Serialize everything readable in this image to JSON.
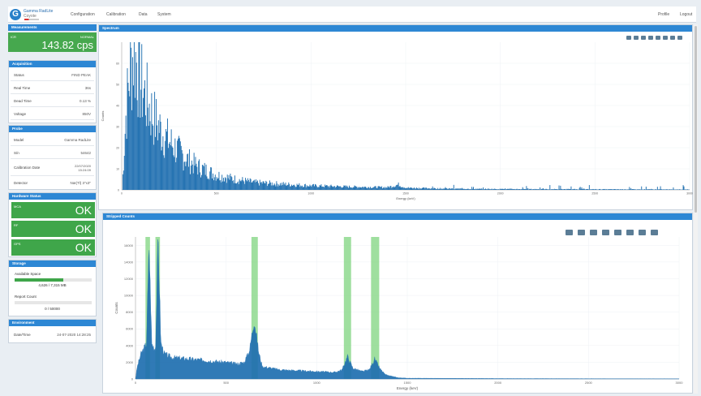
{
  "app": {
    "brand_line1": "Gamma RadLite",
    "brand_line2": "Coyote"
  },
  "nav": [
    "Configuration",
    "Calibration",
    "Data",
    "System"
  ],
  "nav_right": [
    "Profile",
    "Logout"
  ],
  "measurements": {
    "title": "Measurements",
    "label": "ICR",
    "status": "NORMAL",
    "value": "143.82 cps",
    "color": "#46a84e"
  },
  "acquisition": {
    "title": "Acquisition",
    "rows": [
      {
        "label": "Status",
        "value": "FIND PEAK"
      },
      {
        "label": "Real Time",
        "value": "36s"
      },
      {
        "label": "Dead Time",
        "value": "0.13 %"
      },
      {
        "label": "Voltage",
        "value": "850V"
      }
    ]
  },
  "probe": {
    "title": "Probe",
    "rows": [
      {
        "label": "Model",
        "value": "Gamma RadLite"
      },
      {
        "label": "S/n",
        "value": "54642"
      },
      {
        "label": "Calibration Date",
        "value": "22/07/2020\n15:24:09"
      },
      {
        "label": "Detector",
        "value": "NaI(Tl) 3\"x3\""
      }
    ]
  },
  "hardware": {
    "title": "Hardware Status",
    "items": [
      {
        "label": "MCA",
        "value": "OK"
      },
      {
        "label": "RF",
        "value": "OK"
      },
      {
        "label": "GPS",
        "value": "OK"
      }
    ]
  },
  "storage": {
    "title": "Storage",
    "space_label": "Available Space",
    "space_value": "4,626 / 7,315 MB",
    "space_fraction": 0.63,
    "report_label": "Report Count",
    "report_value": "0 / 50000",
    "report_fraction": 0.0
  },
  "environment": {
    "title": "Environment",
    "label": "Date/Time",
    "value": "24-07-2020 14:28:25"
  },
  "spectrum_title": "Spectrum",
  "stripping_title": "Stripped Counts",
  "chart_data": [
    {
      "type": "bar",
      "title": "",
      "xlabel": "Energy (keV)",
      "ylabel": "Counts",
      "xlim": [
        0,
        3000
      ],
      "ylim": [
        0,
        70
      ],
      "xticks": [
        0,
        500,
        1000,
        1500,
        2000,
        2500,
        3000
      ],
      "yticks": [
        0,
        10,
        20,
        30,
        40,
        50,
        60
      ],
      "color": "#1f6fb0",
      "envelope": [
        [
          0,
          0
        ],
        [
          20,
          35
        ],
        [
          40,
          55
        ],
        [
          60,
          65
        ],
        [
          80,
          60
        ],
        [
          100,
          50
        ],
        [
          140,
          40
        ],
        [
          180,
          32
        ],
        [
          220,
          26
        ],
        [
          260,
          22
        ],
        [
          300,
          18
        ],
        [
          350,
          14
        ],
        [
          400,
          11
        ],
        [
          450,
          9
        ],
        [
          500,
          7
        ],
        [
          600,
          5
        ],
        [
          700,
          3.5
        ],
        [
          800,
          3
        ],
        [
          900,
          2.5
        ],
        [
          1000,
          2
        ],
        [
          1200,
          1.5
        ],
        [
          1400,
          1.2
        ],
        [
          1460,
          2.5
        ],
        [
          1500,
          1
        ],
        [
          1700,
          0.6
        ],
        [
          2000,
          0.4
        ],
        [
          2500,
          0.3
        ],
        [
          3000,
          0.2
        ]
      ]
    },
    {
      "type": "area",
      "title": "",
      "xlabel": "Energy (keV)",
      "ylabel": "Counts",
      "xlim": [
        0,
        3000
      ],
      "ylim": [
        0,
        17000
      ],
      "xticks": [
        0,
        500,
        1000,
        1500,
        2000,
        2500,
        3000
      ],
      "yticks": [
        0,
        2000,
        4000,
        6000,
        8000,
        10000,
        12000,
        14000,
        16000
      ],
      "color": "#1f6fb0",
      "highlight_color": "#7fd47f",
      "highlights": [
        [
          55,
          80
        ],
        [
          110,
          135
        ],
        [
          640,
          675
        ],
        [
          1150,
          1190
        ],
        [
          1300,
          1345
        ]
      ],
      "points": [
        [
          0,
          0
        ],
        [
          10,
          1500
        ],
        [
          30,
          3000
        ],
        [
          60,
          4200
        ],
        [
          75,
          16000
        ],
        [
          90,
          4200
        ],
        [
          110,
          3500
        ],
        [
          125,
          17000
        ],
        [
          140,
          4300
        ],
        [
          160,
          3000
        ],
        [
          200,
          2600
        ],
        [
          300,
          2400
        ],
        [
          400,
          2200
        ],
        [
          500,
          2000
        ],
        [
          560,
          1800
        ],
        [
          600,
          2000
        ],
        [
          630,
          3500
        ],
        [
          655,
          7200
        ],
        [
          680,
          3200
        ],
        [
          700,
          1500
        ],
        [
          800,
          1100
        ],
        [
          900,
          1000
        ],
        [
          1000,
          900
        ],
        [
          1100,
          800
        ],
        [
          1140,
          1100
        ],
        [
          1170,
          2700
        ],
        [
          1200,
          1300
        ],
        [
          1250,
          900
        ],
        [
          1290,
          1100
        ],
        [
          1320,
          2400
        ],
        [
          1350,
          1200
        ],
        [
          1380,
          500
        ],
        [
          1450,
          150
        ],
        [
          1500,
          90
        ],
        [
          2000,
          50
        ],
        [
          3000,
          20
        ]
      ]
    }
  ]
}
